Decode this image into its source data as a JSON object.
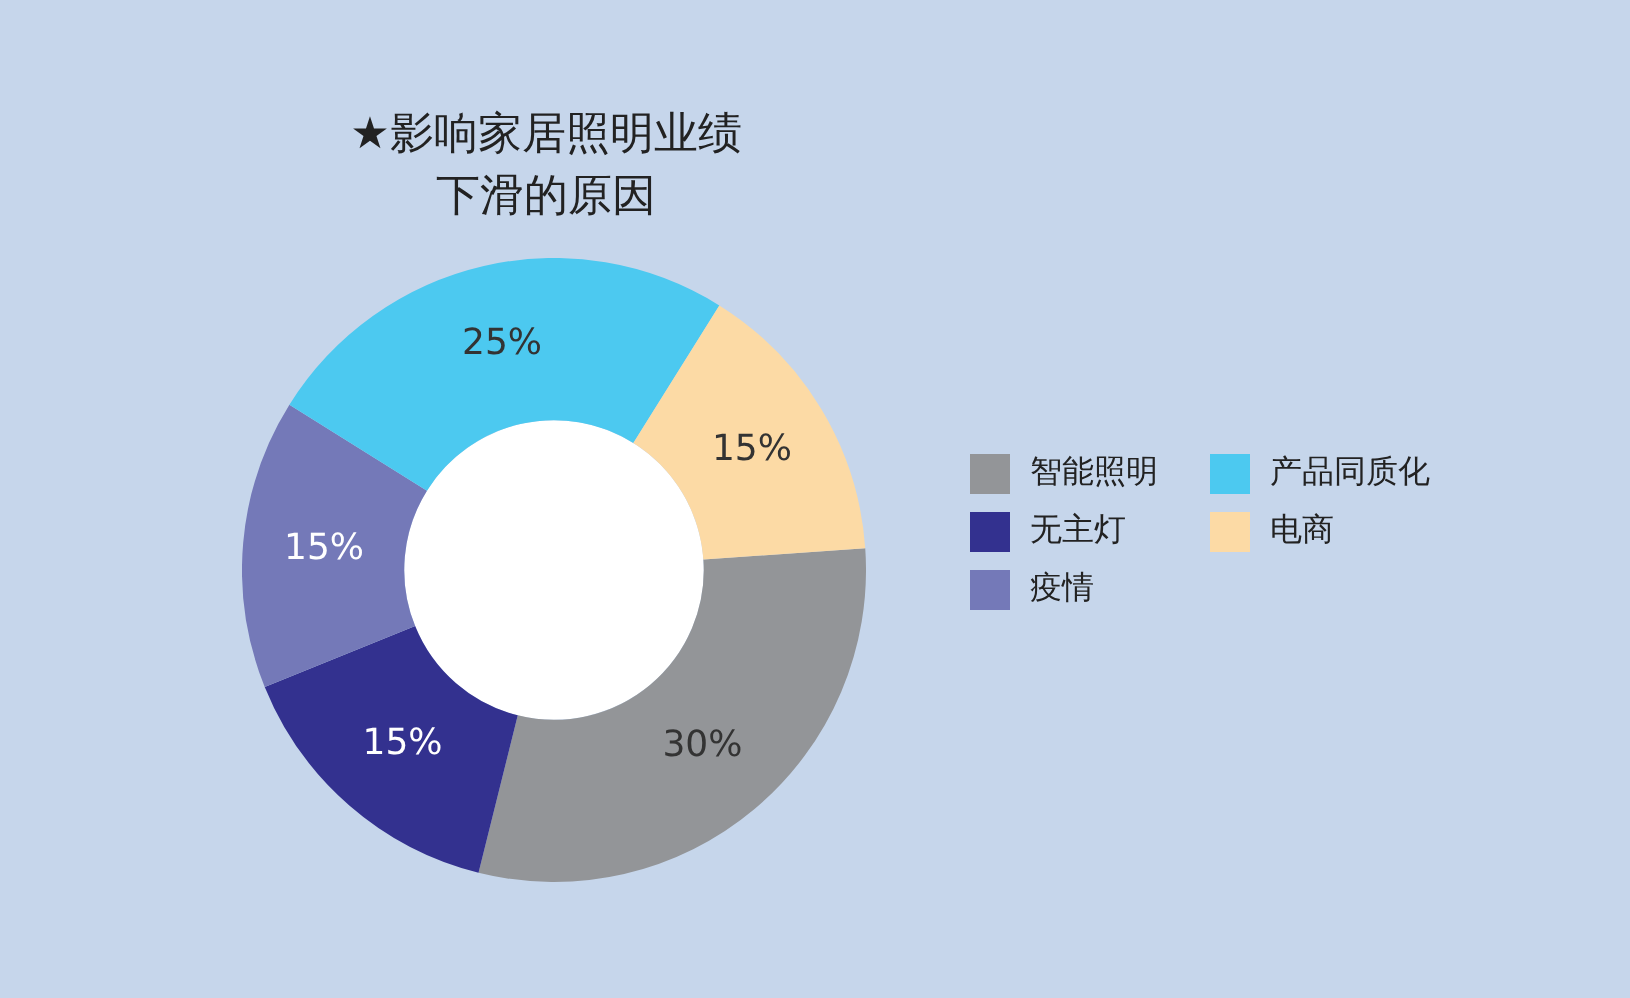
{
  "chart_data": {
    "type": "donut",
    "title": "★影响家居照明业绩下滑的原因",
    "categories": [
      "智能照明",
      "无主灯",
      "疫情",
      "产品同质化",
      "电商"
    ],
    "values": [
      30,
      15,
      15,
      25,
      15
    ],
    "value_labels": [
      "30%",
      "15%",
      "15%",
      "25%",
      "15%"
    ],
    "colors": [
      "#939598",
      "#33318f",
      "#7479b8",
      "#4cc9f0",
      "#fcdaa5"
    ],
    "legend": "right"
  }
}
